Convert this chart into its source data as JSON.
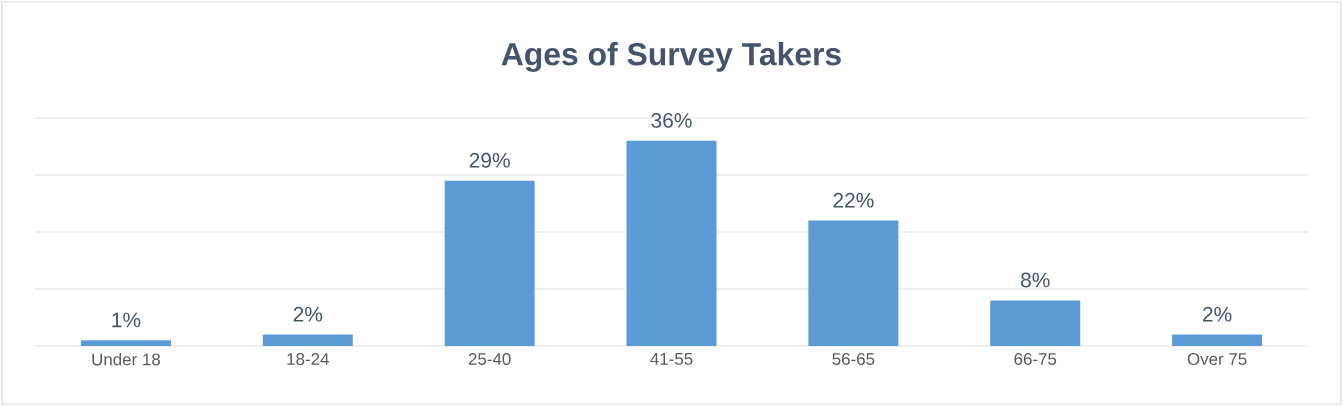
{
  "chart_data": {
    "type": "bar",
    "title": "Ages of Survey Takers",
    "categories": [
      "Under 18",
      "18-24",
      "25-40",
      "41-55",
      "56-65",
      "66-75",
      "Over 75"
    ],
    "values": [
      1,
      2,
      29,
      36,
      22,
      8,
      2
    ],
    "value_labels": [
      "1%",
      "2%",
      "29%",
      "36%",
      "22%",
      "8%",
      "2%"
    ],
    "color": "#5b9bd5",
    "ylim": [
      0,
      40
    ],
    "yticks": [
      {
        "value": 0,
        "label": null
      },
      {
        "value": 10,
        "label": null
      },
      {
        "value": 20,
        "label": null
      },
      {
        "value": 30,
        "label": null
      },
      {
        "value": 40,
        "label": null
      }
    ],
    "tick_labels": "x",
    "grid": "y"
  }
}
